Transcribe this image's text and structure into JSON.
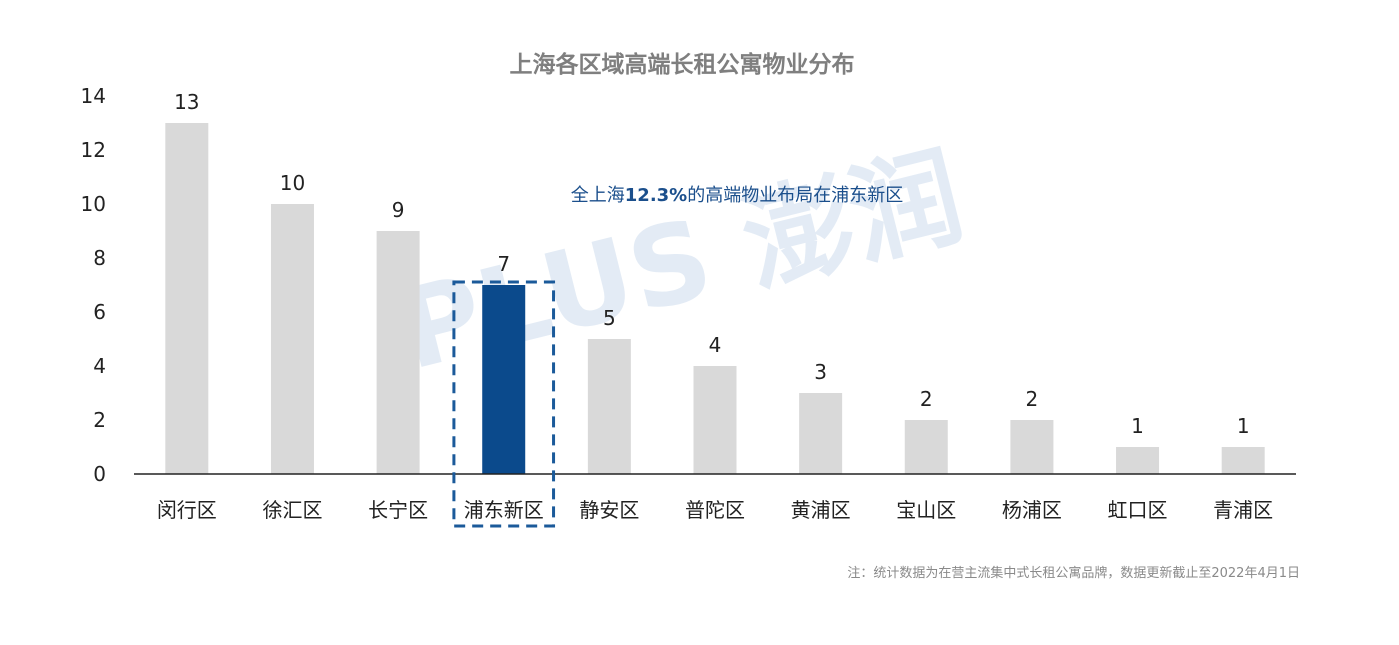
{
  "chart_data": {
    "type": "bar",
    "title": "上海各区域高端长租公寓物业分布",
    "categories": [
      "闵行区",
      "徐汇区",
      "长宁区",
      "浦东新区",
      "静安区",
      "普陀区",
      "黄浦区",
      "宝山区",
      "杨浦区",
      "虹口区",
      "青浦区"
    ],
    "values": [
      13,
      10,
      9,
      7,
      5,
      4,
      3,
      2,
      2,
      1,
      1
    ],
    "ylim": [
      0,
      14
    ],
    "yticks": [
      0,
      2,
      4,
      6,
      8,
      10,
      12,
      14
    ],
    "highlight_index": 3,
    "grid": false,
    "annotation": {
      "prefix": "全上海",
      "value": "12.3%",
      "suffix": "的高端物业布局在浦东新区"
    },
    "note": "注：统计数据为在营主流集中式长租公寓品牌，数据更新截止至2022年4月1日",
    "colors": {
      "bar": "#d9d9d9",
      "highlight": "#0b4a8c",
      "dashed_box": "#1b5a9a",
      "annotation": "#1b4f8c"
    }
  },
  "watermark": "PLUS 澎润"
}
